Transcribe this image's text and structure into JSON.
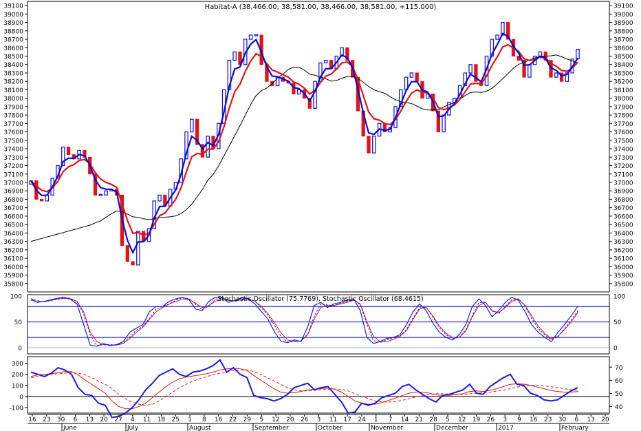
{
  "colors": {
    "up": "#1a1ae6",
    "down": "#e01414",
    "ma_fast": "#0a0ad2",
    "ma_mid": "#e01414",
    "ma_slow": "#000000",
    "grid": "#0000c8",
    "axis": "#000000"
  },
  "chart_data": [
    {
      "type": "candlestick",
      "title": "Habitat-A (38,466.00, 38,581.00, 38,466.00, 38,581.00, +115.000)",
      "ylim": [
        35700,
        39150
      ],
      "yticks": [
        35800,
        35900,
        36000,
        36100,
        36200,
        36300,
        36400,
        36500,
        36600,
        36700,
        36800,
        36900,
        37000,
        37100,
        37200,
        37300,
        37400,
        37500,
        37600,
        37700,
        37800,
        37900,
        38000,
        38100,
        38200,
        38300,
        38400,
        38500,
        38600,
        38700,
        38800,
        38900,
        39000,
        39100
      ],
      "close": [
        37020,
        36800,
        36780,
        36850,
        37050,
        37200,
        37420,
        37330,
        37280,
        37380,
        37300,
        37100,
        36850,
        36850,
        36900,
        36920,
        36850,
        36250,
        36060,
        36020,
        36420,
        36300,
        36450,
        36780,
        36850,
        36720,
        36920,
        37000,
        37280,
        37600,
        37750,
        37450,
        37300,
        37550,
        37400,
        37700,
        38100,
        38450,
        38550,
        38400,
        38700,
        38750,
        38750,
        38400,
        38200,
        38150,
        38250,
        38200,
        38180,
        38050,
        38100,
        38000,
        37880,
        38200,
        38420,
        38450,
        38350,
        38500,
        38600,
        38450,
        38250,
        37850,
        37550,
        37350,
        37550,
        37700,
        37600,
        37650,
        37900,
        38100,
        38250,
        38300,
        38200,
        38000,
        38050,
        37850,
        37600,
        37800,
        37950,
        38000,
        38150,
        38300,
        38400,
        38200,
        38150,
        38500,
        38700,
        38750,
        38900,
        38700,
        38500,
        38450,
        38250,
        38400,
        38500,
        38550,
        38450,
        38250,
        38300,
        38200,
        38300,
        38466,
        38581
      ],
      "moving_averages": [
        "fast",
        "mid",
        "slow"
      ],
      "xticks": [
        "16",
        "23",
        "30",
        "6",
        "13",
        "20",
        "27",
        "4",
        "11",
        "18",
        "25",
        "1",
        "8",
        "16",
        "22",
        "29",
        "5",
        "12",
        "20",
        "26",
        "3",
        "11",
        "17",
        "24",
        "1",
        "7",
        "14",
        "21",
        "28",
        "5",
        "12",
        "19",
        "26",
        "3",
        "9",
        "16",
        "23",
        "30",
        "6",
        "13",
        "20"
      ],
      "months": [
        "June",
        "July",
        "August",
        "September",
        "October",
        "November",
        "December",
        "2017",
        "February"
      ]
    },
    {
      "type": "line",
      "title": "Stochastic Oscillator (75.7769), Stochastic Oscillator (68.4615)",
      "ylim": [
        -12,
        103
      ],
      "yticks": [
        0,
        50,
        100
      ],
      "levels": [
        20,
        50,
        80
      ],
      "series": [
        {
          "values": [
            95,
            88,
            90,
            93,
            96,
            98,
            94,
            85,
            45,
            5,
            3,
            8,
            4,
            6,
            12,
            30,
            38,
            45,
            70,
            80,
            80,
            90,
            95,
            98,
            93,
            75,
            72,
            90,
            98,
            97,
            88,
            92,
            97,
            95,
            85,
            70,
            55,
            30,
            12,
            10,
            15,
            12,
            40,
            82,
            88,
            78,
            85,
            88,
            92,
            95,
            72,
            20,
            8,
            12,
            18,
            20,
            25,
            45,
            70,
            85,
            72,
            48,
            30,
            20,
            15,
            25,
            45,
            80,
            95,
            82,
            60,
            72,
            88,
            98,
            92,
            70,
            45,
            30,
            20,
            12,
            30,
            45,
            62,
            80
          ]
        },
        {
          "values": [
            92,
            89,
            90,
            92,
            94,
            96,
            95,
            90,
            70,
            30,
            12,
            6,
            5,
            5,
            8,
            18,
            30,
            40,
            55,
            70,
            78,
            85,
            90,
            94,
            94,
            86,
            78,
            82,
            90,
            95,
            92,
            91,
            94,
            95,
            90,
            80,
            66,
            48,
            28,
            15,
            12,
            13,
            25,
            55,
            78,
            82,
            82,
            85,
            88,
            92,
            85,
            50,
            22,
            12,
            12,
            16,
            22,
            33,
            55,
            75,
            78,
            62,
            42,
            28,
            20,
            20,
            32,
            60,
            82,
            88,
            72,
            68,
            78,
            90,
            94,
            82,
            62,
            42,
            28,
            18,
            22,
            35,
            50,
            68
          ]
        }
      ]
    },
    {
      "type": "line",
      "title": "",
      "ylim": [
        -150,
        360
      ],
      "yticks_left": [
        -100,
        0,
        100,
        200,
        300
      ],
      "yticks_right": [
        40,
        50,
        60,
        70
      ],
      "series": [
        {
          "values": [
            220,
            200,
            180,
            210,
            260,
            240,
            200,
            80,
            20,
            10,
            -60,
            -80,
            -190,
            -180,
            -150,
            -100,
            -30,
            60,
            120,
            190,
            220,
            250,
            200,
            180,
            220,
            230,
            250,
            280,
            330,
            220,
            260,
            200,
            170,
            10,
            -10,
            -20,
            -40,
            -20,
            20,
            80,
            100,
            120,
            60,
            80,
            90,
            20,
            -50,
            -150,
            -140,
            -60,
            -80,
            -60,
            -10,
            10,
            30,
            90,
            110,
            60,
            20,
            -20,
            -50,
            10,
            20,
            40,
            60,
            110,
            30,
            20,
            90,
            130,
            170,
            200,
            110,
            100,
            30,
            10,
            -30,
            -40,
            -30,
            10,
            50,
            80
          ]
        },
        {
          "values": [
            180,
            195,
            200,
            205,
            215,
            225,
            225,
            195,
            150,
            110,
            70,
            30,
            -40,
            -90,
            -110,
            -110,
            -90,
            -60,
            -10,
            40,
            90,
            130,
            160,
            175,
            185,
            195,
            205,
            220,
            240,
            250,
            255,
            250,
            235,
            190,
            150,
            110,
            70,
            40,
            30,
            35,
            45,
            60,
            65,
            70,
            75,
            65,
            40,
            0,
            -40,
            -60,
            -70,
            -70,
            -55,
            -35,
            -15,
            10,
            30,
            40,
            40,
            30,
            15,
            10,
            10,
            18,
            25,
            45,
            50,
            45,
            55,
            70,
            90,
            110,
            115,
            112,
            100,
            85,
            70,
            55,
            45,
            40,
            40,
            45
          ]
        },
        {
          "values": [
            170,
            180,
            190,
            200,
            205,
            210,
            215,
            210,
            195,
            170,
            140,
            110,
            70,
            20,
            -20,
            -50,
            -70,
            -80,
            -70,
            -40,
            0,
            40,
            80,
            110,
            140,
            160,
            180,
            195,
            210,
            225,
            235,
            240,
            240,
            225,
            200,
            170,
            140,
            110,
            80,
            60,
            50,
            50,
            55,
            60,
            65,
            68,
            65,
            50,
            25,
            0,
            -20,
            -40,
            -50,
            -50,
            -45,
            -35,
            -20,
            -5,
            10,
            20,
            25,
            25,
            22,
            20,
            20,
            25,
            30,
            35,
            40,
            48,
            58,
            70,
            85,
            95,
            100,
            100,
            95,
            88,
            80,
            70,
            62,
            55
          ]
        }
      ]
    }
  ]
}
